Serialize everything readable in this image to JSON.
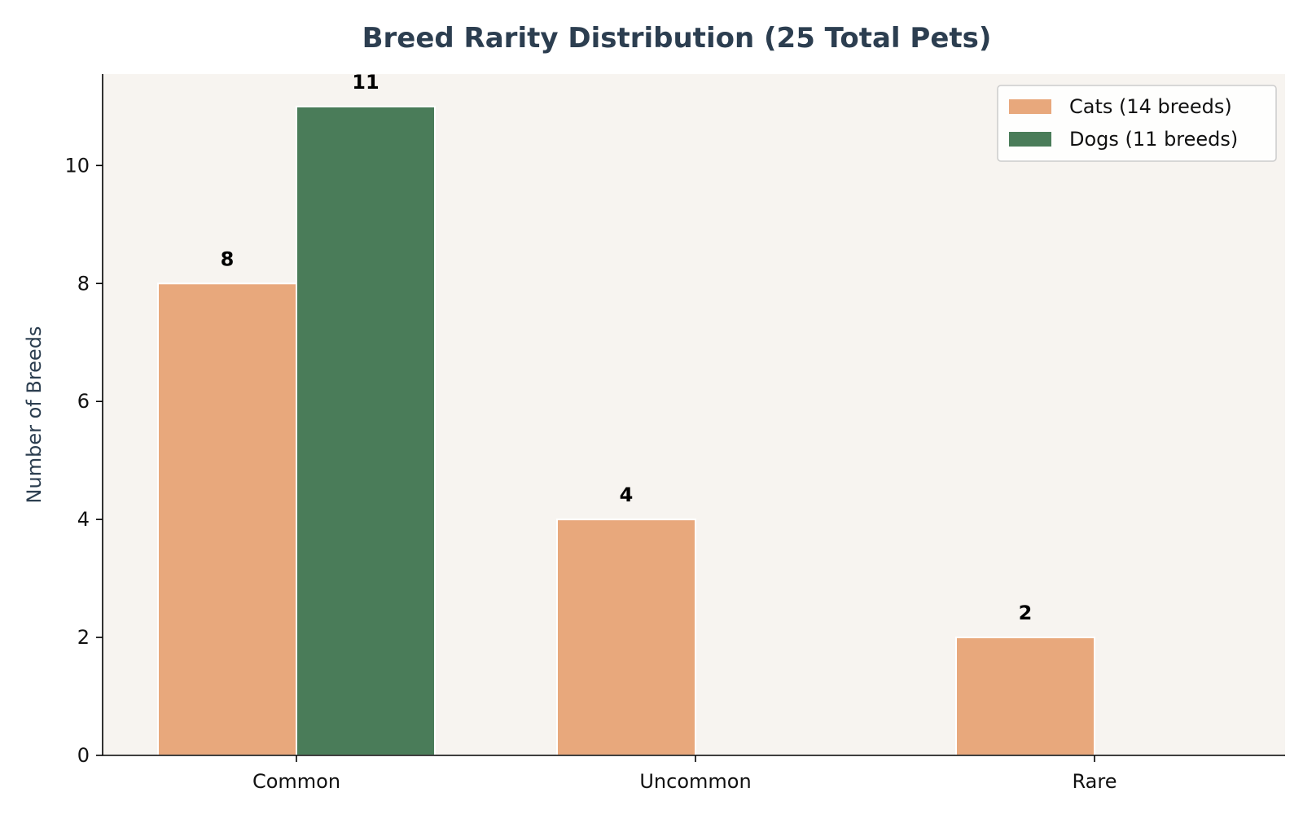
{
  "chart_data": {
    "type": "bar",
    "title": "Breed Rarity Distribution (25 Total Pets)",
    "xlabel": "",
    "ylabel": "Number of Breeds",
    "categories": [
      "Common",
      "Uncommon",
      "Rare"
    ],
    "series": [
      {
        "name": "Cats (14 breeds)",
        "values": [
          8,
          4,
          2
        ],
        "color": "#e8a87c"
      },
      {
        "name": "Dogs (11 breeds)",
        "values": [
          11,
          0,
          0
        ],
        "color": "#4a7c59"
      }
    ],
    "ylim": [
      0,
      11.55
    ],
    "yticks": [
      0,
      2,
      4,
      6,
      8,
      10
    ],
    "grid": false,
    "legend_position": "top-right",
    "plot_background": "#f7f4f0"
  }
}
